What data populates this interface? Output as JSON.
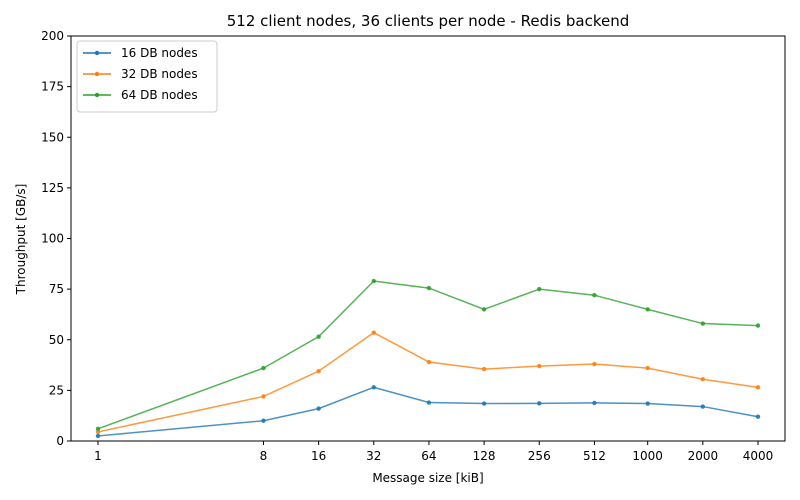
{
  "chart_data": {
    "type": "line",
    "title": "512 client nodes, 36 clients per node - Redis backend",
    "xlabel": "Message size [kiB]",
    "ylabel": "Throughput [GB/s]",
    "xscale": "log",
    "x": [
      1,
      8,
      16,
      32,
      64,
      128,
      256,
      512,
      1000,
      2000,
      4000
    ],
    "xtick_labels": [
      "1",
      "8",
      "16",
      "32",
      "64",
      "128",
      "256",
      "512",
      "1000",
      "2000",
      "4000"
    ],
    "ylim": [
      0,
      200
    ],
    "yticks": [
      0,
      25,
      50,
      75,
      100,
      125,
      150,
      175,
      200
    ],
    "grid": false,
    "legend_position": "top-left",
    "series": [
      {
        "name": "16 DB nodes",
        "color": "#1f77b4",
        "values": [
          2.5,
          10,
          16,
          26.5,
          19,
          18.5,
          18.6,
          18.8,
          18.5,
          17,
          12
        ]
      },
      {
        "name": "32 DB nodes",
        "color": "#ff7f0e",
        "values": [
          4.5,
          22,
          34.5,
          53.5,
          39,
          35.5,
          37,
          38,
          36,
          30.5,
          26.5
        ]
      },
      {
        "name": "64 DB nodes",
        "color": "#2ca02c",
        "values": [
          6,
          36,
          51.5,
          79,
          75.5,
          65,
          75,
          72,
          65,
          58,
          57
        ]
      }
    ]
  }
}
